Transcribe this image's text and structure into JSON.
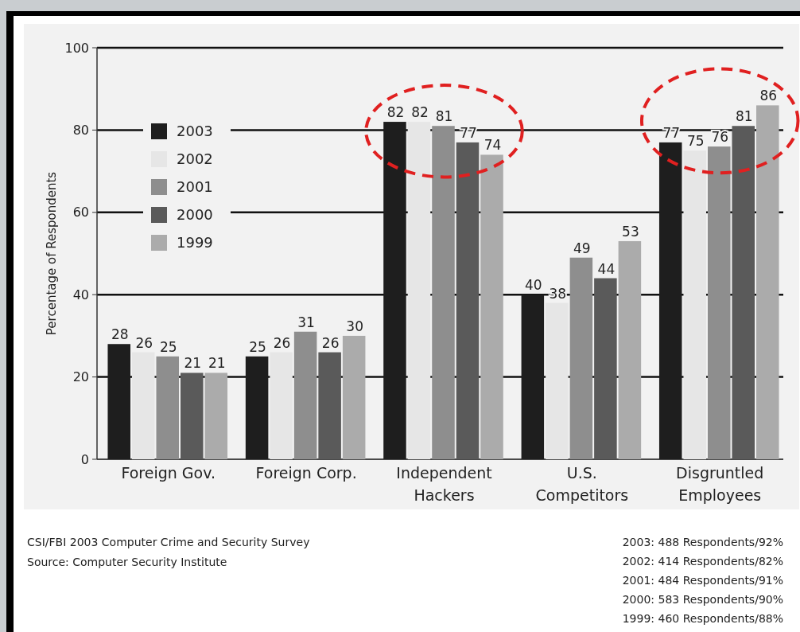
{
  "chart_data": {
    "type": "bar",
    "ylabel": "Percentage of Respondents",
    "categories": [
      "Foreign Gov.",
      "Foreign Corp.",
      "Independent\nHackers",
      "U.S.\nCompetitors",
      "Disgruntled\nEmployees"
    ],
    "series": [
      {
        "name": "2003",
        "color": "#1e1e1e",
        "values": [
          28,
          25,
          82,
          40,
          77
        ]
      },
      {
        "name": "2002",
        "color": "#e6e6e6",
        "values": [
          26,
          26,
          82,
          38,
          75
        ]
      },
      {
        "name": "2001",
        "color": "#8e8e8e",
        "values": [
          25,
          31,
          81,
          49,
          76
        ]
      },
      {
        "name": "2000",
        "color": "#5a5a5a",
        "values": [
          21,
          26,
          77,
          44,
          81
        ]
      },
      {
        "name": "1999",
        "color": "#ababab",
        "values": [
          21,
          30,
          74,
          53,
          86
        ]
      }
    ],
    "ylim": [
      0,
      100
    ],
    "yticks": [
      0,
      20,
      40,
      60,
      80,
      100
    ],
    "grid": "y",
    "legend": "top left",
    "data_labels": true,
    "annotations": [
      "CSI/FBI 2003 Computer Crime and Security Survey",
      "Source: Computer Security Institute",
      "2003: 488 Respondents/92%",
      "2002: 414 Respondents/82%",
      "2001: 484 Respondents/91%",
      "2000: 583 Respondents/90%",
      "1999: 460 Respondents/88%"
    ]
  }
}
